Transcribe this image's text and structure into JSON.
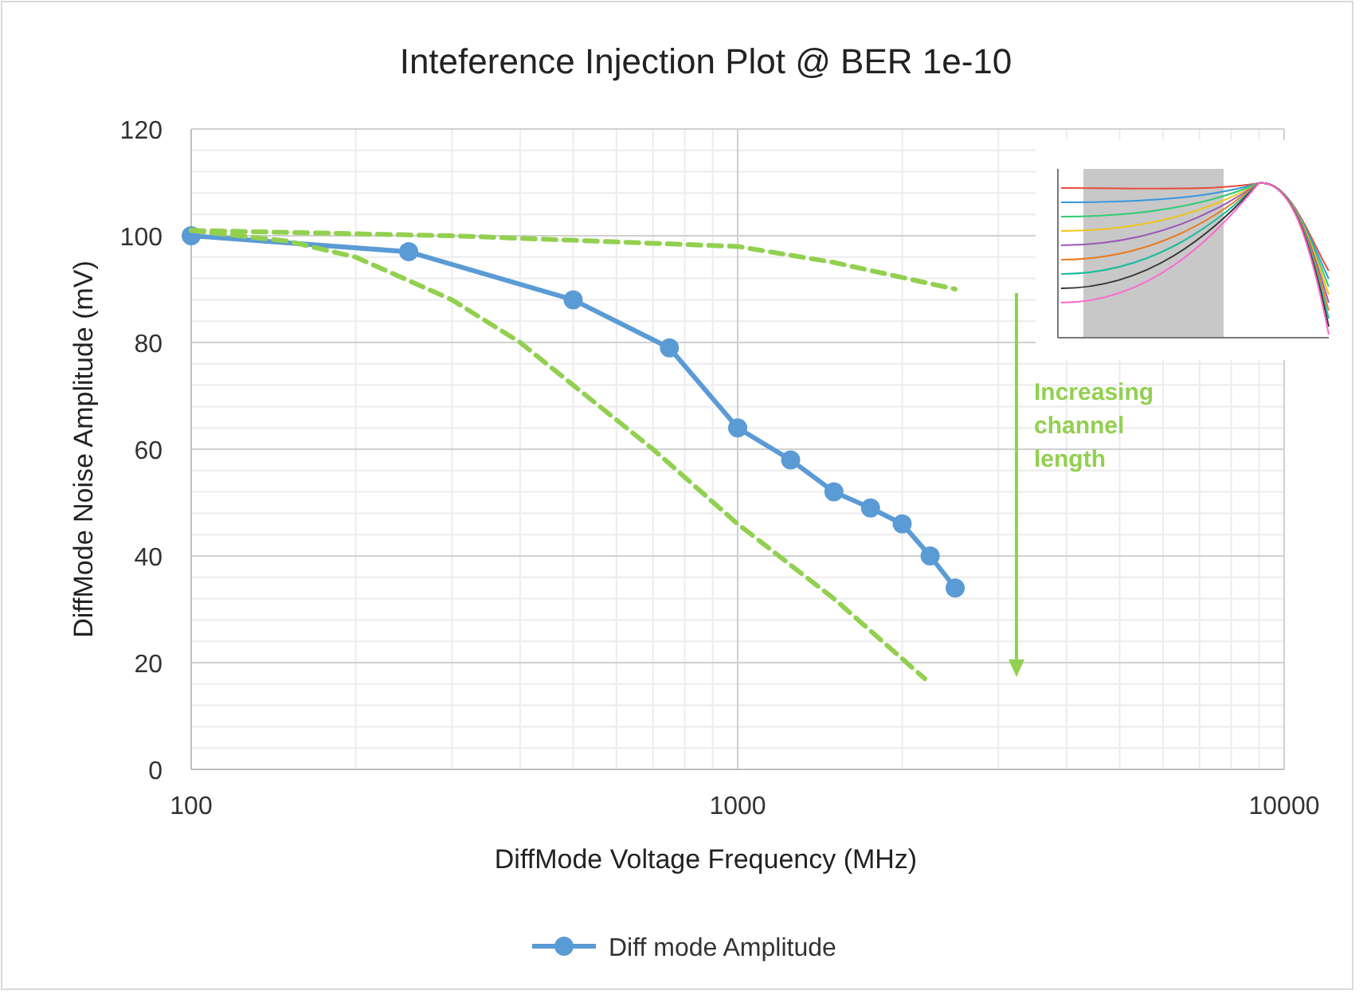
{
  "chart_data": {
    "type": "line",
    "title": "Inteference Injection Plot @ BER 1e-10",
    "xlabel": "DiffMode Voltage Frequency (MHz)",
    "ylabel": "DiffMode Noise Amplitude (mV)",
    "log": "x",
    "xlim": [
      100,
      10000
    ],
    "xticks": [
      100,
      1000,
      10000
    ],
    "ylim": [
      0,
      120
    ],
    "yticks": [
      0,
      20,
      40,
      60,
      80,
      100,
      120
    ],
    "grid": true,
    "legend": "bottom",
    "annotations": [
      "Increasing channel length"
    ],
    "series": [
      {
        "name": "Diff mode Amplitude",
        "color": "#5b9bd5",
        "marker": "circle",
        "line_style": "solid",
        "x": [
          100,
          250,
          500,
          750,
          1000,
          1250,
          1500,
          1750,
          2000,
          2250,
          2500
        ],
        "values": [
          100,
          97,
          88,
          79,
          64,
          58,
          52,
          49,
          46,
          40,
          34
        ]
      },
      {
        "color": "#92d050",
        "marker": "none",
        "line_style": "dashed",
        "x": [
          100,
          300,
          1000,
          1500,
          2500
        ],
        "values": [
          101,
          100,
          98,
          95,
          90
        ]
      },
      {
        "color": "#92d050",
        "marker": "none",
        "line_style": "dashed",
        "x": [
          100,
          150,
          200,
          300,
          400,
          500,
          700,
          1000,
          1500,
          2200
        ],
        "values": [
          101,
          99,
          96,
          88,
          80,
          72,
          60,
          46,
          32,
          17
        ]
      }
    ]
  }
}
